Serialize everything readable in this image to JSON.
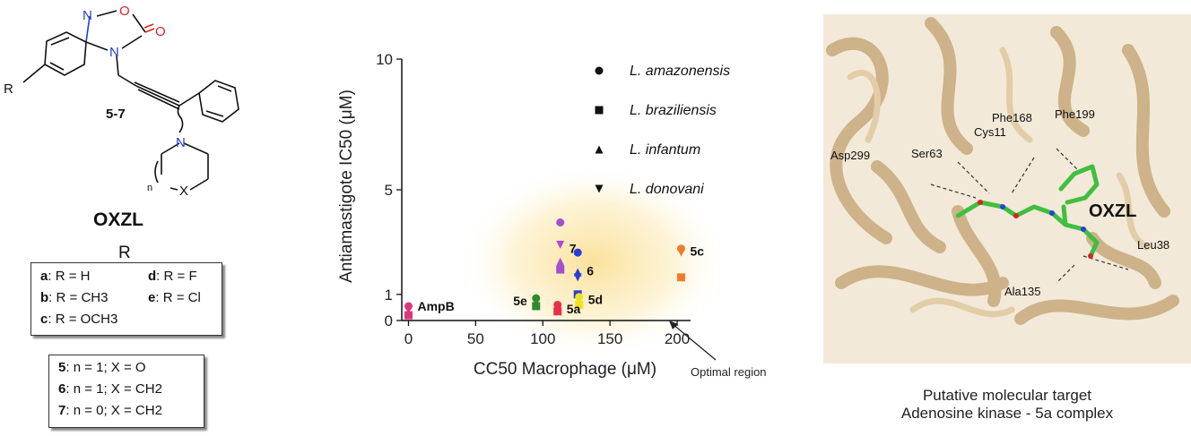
{
  "structure": {
    "compound_label": "5-7",
    "r_group": "R",
    "ring_atoms": {
      "n1": "N",
      "o1": "O",
      "o2": "O",
      "n2": "N",
      "n3": "N",
      "x": "X",
      "n_sub": "n"
    },
    "title": "OXZL",
    "r_heading": "R",
    "substituents": [
      {
        "key": "a",
        "value": "R = H"
      },
      {
        "key": "d",
        "value": "R = F"
      },
      {
        "key": "b",
        "value": "R = CH3"
      },
      {
        "key": "e",
        "value": "R = Cl"
      },
      {
        "key": "c",
        "value": "R = OCH3"
      }
    ],
    "series": [
      {
        "key": "5",
        "value": "n = 1; X = O"
      },
      {
        "key": "6",
        "value": "n = 1; X = CH2"
      },
      {
        "key": "7",
        "value": "n = 0; X = CH2"
      }
    ]
  },
  "chart_data": {
    "type": "scatter",
    "xlabel": "CC50 Macrophage (μM)",
    "ylabel": "Antiamastigote IC50 (μM)",
    "xlim": [
      -5,
      210
    ],
    "ylim": [
      0,
      10
    ],
    "x_ticks": [
      0,
      50,
      100,
      150,
      200
    ],
    "y_ticks": [
      0,
      1,
      5,
      10
    ],
    "grid": false,
    "legend_position": "top-right",
    "legend": [
      {
        "name": "L. amazonensis",
        "marker": "circle"
      },
      {
        "name": "L. braziliensis",
        "marker": "square"
      },
      {
        "name": "L. infantum",
        "marker": "triangle-up"
      },
      {
        "name": "L. donovani",
        "marker": "triangle-down"
      }
    ],
    "highlight": {
      "label": "Optimal region",
      "color": "#f7c94a"
    },
    "points": [
      {
        "group": "AmpB",
        "x": 0,
        "y": 0.55,
        "marker": "circle",
        "color": "#e0357a"
      },
      {
        "group": "AmpB",
        "x": 0,
        "y": 0.4,
        "marker": "triangle-down",
        "color": "#e0357a"
      },
      {
        "group": "AmpB",
        "x": 0,
        "y": 0.2,
        "marker": "square",
        "color": "#e0357a"
      },
      {
        "group": "5e",
        "x": 95,
        "y": 0.85,
        "marker": "circle",
        "color": "#2e8b2e"
      },
      {
        "group": "5e",
        "x": 95,
        "y": 0.7,
        "marker": "triangle-up",
        "color": "#2e8b2e"
      },
      {
        "group": "5e",
        "x": 95,
        "y": 0.55,
        "marker": "square",
        "color": "#2e8b2e"
      },
      {
        "group": "5a",
        "x": 111,
        "y": 0.6,
        "marker": "circle",
        "color": "#e8304a"
      },
      {
        "group": "5a",
        "x": 111,
        "y": 0.5,
        "marker": "triangle-down",
        "color": "#e8304a"
      },
      {
        "group": "5a",
        "x": 111,
        "y": 0.35,
        "marker": "square",
        "color": "#e8304a"
      },
      {
        "group": "7",
        "x": 113,
        "y": 3.75,
        "marker": "circle",
        "color": "#a34fd1"
      },
      {
        "group": "7",
        "x": 113,
        "y": 2.9,
        "marker": "triangle-down",
        "color": "#a34fd1"
      },
      {
        "group": "7",
        "x": 113,
        "y": 2.25,
        "marker": "triangle-up",
        "color": "#a34fd1"
      },
      {
        "group": "7",
        "x": 113,
        "y": 1.95,
        "marker": "square",
        "color": "#a34fd1"
      },
      {
        "group": "6",
        "x": 126,
        "y": 2.6,
        "marker": "circle",
        "color": "#2a3ed6"
      },
      {
        "group": "6",
        "x": 126,
        "y": 1.85,
        "marker": "triangle-up",
        "color": "#2a3ed6"
      },
      {
        "group": "6",
        "x": 126,
        "y": 1.65,
        "marker": "triangle-down",
        "color": "#2a3ed6"
      },
      {
        "group": "6",
        "x": 126,
        "y": 1.0,
        "marker": "square",
        "color": "#2a3ed6"
      },
      {
        "group": "5d",
        "x": 127,
        "y": 0.9,
        "marker": "circle",
        "color": "#f2e21e"
      },
      {
        "group": "5d",
        "x": 127,
        "y": 0.75,
        "marker": "triangle-up",
        "color": "#f2e21e"
      },
      {
        "group": "5d",
        "x": 127,
        "y": 0.6,
        "marker": "square",
        "color": "#f2e21e"
      },
      {
        "group": "5c",
        "x": 203,
        "y": 2.75,
        "marker": "circle",
        "color": "#ee7d2a"
      },
      {
        "group": "5c",
        "x": 203,
        "y": 2.6,
        "marker": "triangle-down",
        "color": "#ee7d2a"
      },
      {
        "group": "5c",
        "x": 203,
        "y": 1.65,
        "marker": "square",
        "color": "#ee7d2a"
      }
    ],
    "point_labels": [
      {
        "text": "AmpB",
        "x": 0,
        "y": 0.55
      },
      {
        "text": "5e",
        "x": 95,
        "y": 0.75
      },
      {
        "text": "5a",
        "x": 111,
        "y": 0.45
      },
      {
        "text": "7",
        "x": 113,
        "y": 2.75
      },
      {
        "text": "6",
        "x": 126,
        "y": 1.9
      },
      {
        "text": "5d",
        "x": 127,
        "y": 0.8
      },
      {
        "text": "5c",
        "x": 203,
        "y": 2.65
      }
    ]
  },
  "protein": {
    "residues": [
      "Phe168",
      "Phe199",
      "Cys11",
      "Asp299",
      "Ser63",
      "Leu38",
      "Ala135"
    ],
    "ligand_label": "OXZL",
    "colors": {
      "ribbon": "#d8bf97",
      "ligand": "#4fc94f"
    },
    "caption_line1": "Putative molecular target",
    "caption_line2": "Adenosine kinase - 5a complex"
  }
}
